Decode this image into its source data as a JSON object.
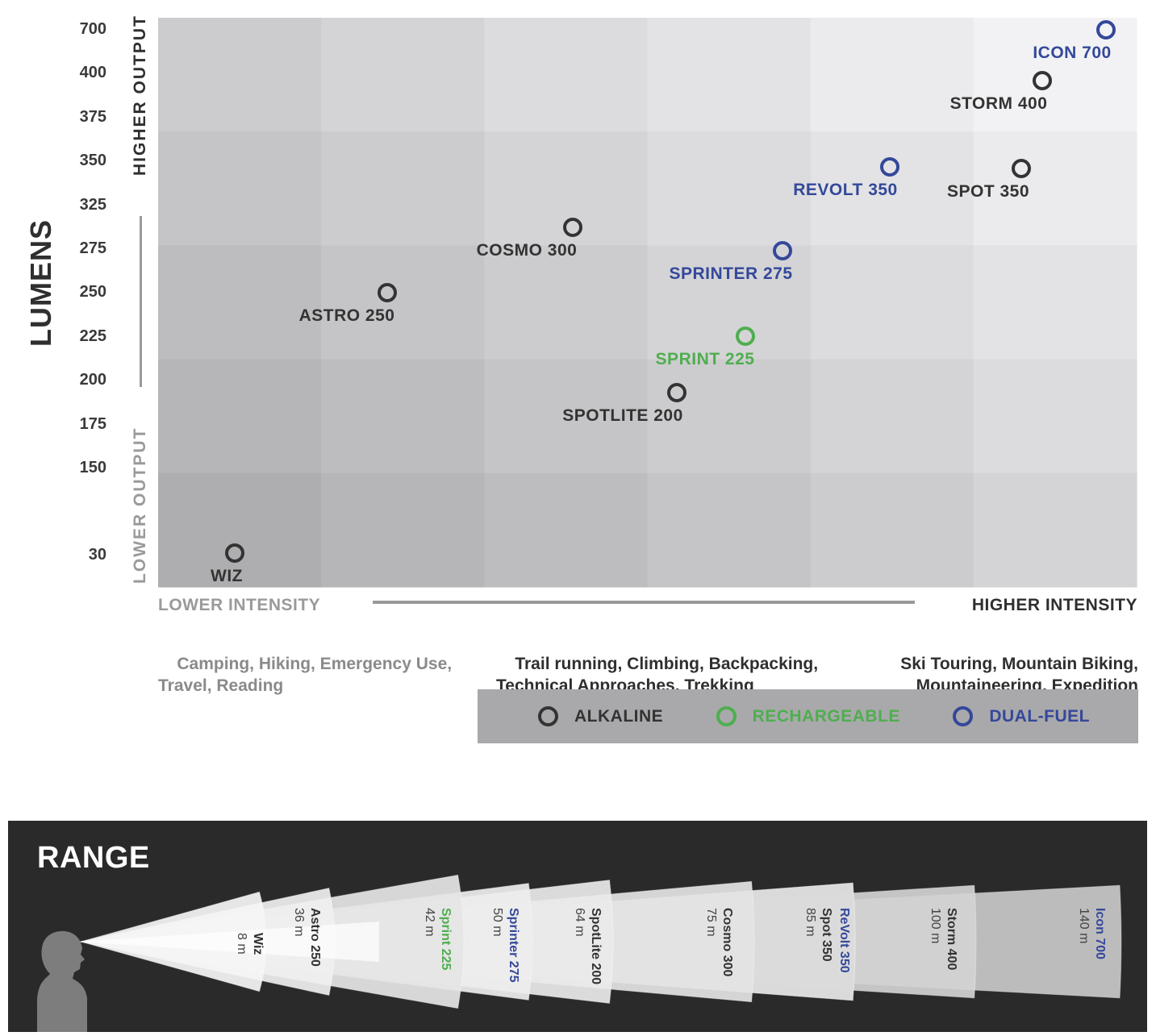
{
  "chart_data": {
    "type": "scatter",
    "ylabel": "LUMENS",
    "y_ticks": [
      "700",
      "400",
      "375",
      "350",
      "325",
      "275",
      "250",
      "225",
      "200",
      "175",
      "150",
      "30"
    ],
    "y_high_label": "HIGHER OUTPUT",
    "y_low_label": "LOWER OUTPUT",
    "x_low_label": "LOWER INTENSITY",
    "x_high_label": "HIGHER INTENSITY",
    "uses": [
      "Camping, Hiking, Emergency Use,\nTravel, Reading",
      "Trail running, Climbing, Backpacking,\nTechnical Approaches, Trekking",
      "Ski Touring, Mountain Biking,\nMountaineering, Expedition"
    ],
    "legend": [
      {
        "label": "ALKALINE",
        "color": "#333333"
      },
      {
        "label": "RECHARGEABLE",
        "color": "#4fae4f"
      },
      {
        "label": "DUAL-FUEL",
        "color": "#34489a"
      }
    ],
    "points": [
      {
        "name": "ICON 700",
        "lumens": 700,
        "type": "DUAL-FUEL",
        "color": "#34489a"
      },
      {
        "name": "STORM 400",
        "lumens": 400,
        "type": "ALKALINE",
        "color": "#333333"
      },
      {
        "name": "REVOLT 350",
        "lumens": 350,
        "type": "DUAL-FUEL",
        "color": "#34489a"
      },
      {
        "name": "SPOT 350",
        "lumens": 350,
        "type": "ALKALINE",
        "color": "#333333"
      },
      {
        "name": "COSMO 300",
        "lumens": 300,
        "type": "ALKALINE",
        "color": "#333333"
      },
      {
        "name": "SPRINTER 275",
        "lumens": 275,
        "type": "DUAL-FUEL",
        "color": "#34489a"
      },
      {
        "name": "ASTRO 250",
        "lumens": 250,
        "type": "ALKALINE",
        "color": "#333333"
      },
      {
        "name": "SPRINT 225",
        "lumens": 225,
        "type": "RECHARGEABLE",
        "color": "#4fae4f"
      },
      {
        "name": "SPOTLITE 200",
        "lumens": 200,
        "type": "ALKALINE",
        "color": "#333333"
      },
      {
        "name": "WIZ",
        "lumens": 30,
        "type": "ALKALINE",
        "color": "#333333"
      }
    ]
  },
  "range_chart": {
    "title": "RANGE",
    "beams": [
      {
        "name": "Wiz",
        "range": "8 m",
        "meters": 8,
        "color": "#333333"
      },
      {
        "name": "Astro 250",
        "range": "36 m",
        "meters": 36,
        "color": "#333333"
      },
      {
        "name": "Sprint 225",
        "range": "42 m",
        "meters": 42,
        "color": "#4fae4f"
      },
      {
        "name": "Sprinter 275",
        "range": "50 m",
        "meters": 50,
        "color": "#34489a"
      },
      {
        "name": "SpotLite 200",
        "range": "64 m",
        "meters": 64,
        "color": "#333333"
      },
      {
        "name": "Cosmo 300",
        "range": "75 m",
        "meters": 75,
        "color": "#333333"
      },
      {
        "name": "ReVolt 350",
        "range": "",
        "meters": 85,
        "color": "#34489a"
      },
      {
        "name": "Spot 350",
        "range": "85 m",
        "meters": 85,
        "color": "#333333"
      },
      {
        "name": "Storm 400",
        "range": "100 m",
        "meters": 100,
        "color": "#333333"
      },
      {
        "name": "Icon 700",
        "range": "140 m",
        "meters": 140,
        "color": "#34489a"
      }
    ]
  }
}
